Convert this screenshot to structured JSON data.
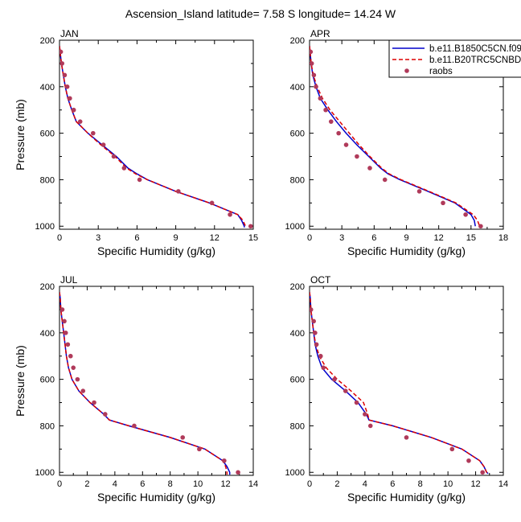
{
  "title": "Ascension_Island  latitude= 7.58 S longitude= 14.24 W",
  "legend": {
    "entries": [
      {
        "label": "b.e11.B1850C5CN.f09",
        "style": "solid",
        "color": "#0000cc"
      },
      {
        "label": "b.e11.B20TRC5CNBD",
        "style": "dashed",
        "color": "#dd0000"
      },
      {
        "label": "raobs",
        "style": "dot",
        "color": "#b03a5a"
      }
    ]
  },
  "chart_data": [
    {
      "type": "line",
      "panel": "JAN",
      "xlabel": "Specific Humidity (g/kg)",
      "ylabel": "Pressure (mb)",
      "xlim": [
        0,
        15
      ],
      "ylim": [
        200,
        1013
      ],
      "y_inverted": true,
      "xticks": [
        0,
        3,
        6,
        9,
        12,
        15
      ],
      "yticks": [
        200,
        400,
        600,
        800,
        1000
      ],
      "series": [
        {
          "name": "b.e11.B1850C5CN.f09",
          "pressure": [
            225,
            250,
            300,
            350,
            400,
            450,
            500,
            550,
            600,
            650,
            700,
            750,
            775,
            800,
            850,
            900,
            950,
            975,
            1000,
            1005
          ],
          "q": [
            0.0,
            0.05,
            0.15,
            0.3,
            0.45,
            0.65,
            0.95,
            1.3,
            2.2,
            3.3,
            4.4,
            5.3,
            6.0,
            6.8,
            9.0,
            11.6,
            13.8,
            14.1,
            14.3,
            14.3
          ]
        },
        {
          "name": "b.e11.B20TRC5CNBD",
          "pressure": [
            225,
            250,
            300,
            350,
            400,
            450,
            500,
            550,
            600,
            650,
            700,
            750,
            775,
            800,
            850,
            900,
            950,
            975,
            1000,
            1005
          ],
          "q": [
            0.0,
            0.05,
            0.15,
            0.3,
            0.45,
            0.65,
            0.95,
            1.3,
            2.2,
            3.2,
            4.3,
            5.2,
            5.9,
            6.8,
            9.0,
            11.6,
            13.8,
            14.2,
            14.4,
            14.4
          ]
        },
        {
          "name": "raobs",
          "pressure": [
            250,
            300,
            350,
            400,
            450,
            500,
            550,
            600,
            650,
            700,
            750,
            800,
            850,
            900,
            950,
            1000
          ],
          "q": [
            0.1,
            0.2,
            0.4,
            0.6,
            0.8,
            1.1,
            1.6,
            2.6,
            3.4,
            4.2,
            5.0,
            6.2,
            9.2,
            11.8,
            13.2,
            14.8
          ]
        }
      ]
    },
    {
      "type": "line",
      "panel": "APR",
      "xlabel": "Specific Humidity (g/kg)",
      "ylabel": "",
      "xlim": [
        0,
        18
      ],
      "ylim": [
        200,
        1013
      ],
      "y_inverted": true,
      "xticks": [
        0,
        3,
        6,
        9,
        12,
        15,
        18
      ],
      "yticks": [
        200,
        400,
        600,
        800,
        1000
      ],
      "series": [
        {
          "name": "b.e11.B1850C5CN.f09",
          "pressure": [
            225,
            250,
            300,
            350,
            400,
            450,
            500,
            550,
            600,
            650,
            700,
            750,
            775,
            800,
            850,
            900,
            950,
            975,
            1000
          ],
          "q": [
            0.0,
            0.05,
            0.15,
            0.3,
            0.6,
            1.0,
            1.7,
            2.5,
            3.4,
            4.4,
            5.5,
            6.6,
            7.3,
            8.4,
            11.0,
            13.5,
            15.0,
            15.3,
            15.4
          ]
        },
        {
          "name": "b.e11.B20TRC5CNBD",
          "pressure": [
            225,
            250,
            300,
            350,
            400,
            450,
            500,
            550,
            600,
            650,
            700,
            750,
            775,
            800,
            850,
            900,
            950,
            975,
            1000
          ],
          "q": [
            0.0,
            0.05,
            0.15,
            0.35,
            0.7,
            1.2,
            1.9,
            2.8,
            3.7,
            4.6,
            5.6,
            6.7,
            7.4,
            8.5,
            11.1,
            13.6,
            15.2,
            15.6,
            15.8
          ]
        },
        {
          "name": "raobs",
          "pressure": [
            250,
            300,
            350,
            400,
            450,
            500,
            550,
            600,
            650,
            700,
            750,
            800,
            850,
            900,
            950,
            1000
          ],
          "q": [
            0.1,
            0.2,
            0.4,
            0.6,
            1.0,
            1.5,
            2.0,
            2.7,
            3.4,
            4.4,
            5.6,
            7.0,
            10.2,
            12.4,
            14.5,
            15.9
          ]
        }
      ]
    },
    {
      "type": "line",
      "panel": "JUL",
      "xlabel": "Specific Humidity (g/kg)",
      "ylabel": "Pressure (mb)",
      "xlim": [
        0,
        14
      ],
      "ylim": [
        200,
        1013
      ],
      "y_inverted": true,
      "xticks": [
        0,
        2,
        4,
        6,
        8,
        10,
        12,
        14
      ],
      "yticks": [
        200,
        400,
        600,
        800,
        1000
      ],
      "series": [
        {
          "name": "b.e11.B1850C5CN.f09",
          "pressure": [
            225,
            250,
            300,
            350,
            400,
            450,
            500,
            550,
            600,
            650,
            700,
            750,
            775,
            800,
            850,
            900,
            950,
            975,
            1000,
            1010
          ],
          "q": [
            0.0,
            0.05,
            0.1,
            0.2,
            0.3,
            0.4,
            0.5,
            0.65,
            0.9,
            1.4,
            2.2,
            3.2,
            3.6,
            5.0,
            8.0,
            10.5,
            11.8,
            12.1,
            12.3,
            12.3
          ]
        },
        {
          "name": "b.e11.B20TRC5CNBD",
          "pressure": [
            225,
            250,
            300,
            350,
            400,
            450,
            500,
            550,
            600,
            650,
            700,
            750,
            775,
            800,
            850,
            900,
            950,
            975,
            1000,
            1010
          ],
          "q": [
            0.0,
            0.05,
            0.1,
            0.2,
            0.3,
            0.4,
            0.5,
            0.65,
            0.9,
            1.4,
            2.2,
            3.2,
            3.6,
            5.0,
            8.0,
            10.5,
            11.8,
            12.0,
            12.1,
            12.1
          ]
        },
        {
          "name": "raobs",
          "pressure": [
            300,
            350,
            400,
            450,
            500,
            550,
            600,
            650,
            700,
            750,
            800,
            850,
            900,
            950,
            1000
          ],
          "q": [
            0.2,
            0.35,
            0.45,
            0.6,
            0.8,
            1.0,
            1.3,
            1.7,
            2.5,
            3.3,
            5.4,
            8.9,
            10.1,
            11.9,
            12.9
          ]
        }
      ]
    },
    {
      "type": "line",
      "panel": "OCT",
      "xlabel": "Specific Humidity (g/kg)",
      "ylabel": "",
      "xlim": [
        0,
        14
      ],
      "ylim": [
        200,
        1013
      ],
      "y_inverted": true,
      "xticks": [
        0,
        2,
        4,
        6,
        8,
        10,
        12,
        14
      ],
      "yticks": [
        200,
        400,
        600,
        800,
        1000
      ],
      "series": [
        {
          "name": "b.e11.B1850C5CN.f09",
          "pressure": [
            225,
            250,
            300,
            350,
            400,
            450,
            500,
            550,
            600,
            650,
            700,
            750,
            775,
            800,
            850,
            900,
            950,
            975,
            1000,
            1005
          ],
          "q": [
            0.0,
            0.05,
            0.1,
            0.2,
            0.3,
            0.4,
            0.6,
            0.9,
            1.6,
            2.6,
            3.5,
            4.1,
            4.3,
            6.0,
            8.8,
            11.0,
            12.3,
            12.6,
            12.8,
            12.9
          ]
        },
        {
          "name": "b.e11.B20TRC5CNBD",
          "pressure": [
            225,
            250,
            300,
            350,
            400,
            450,
            500,
            550,
            600,
            650,
            700,
            750,
            775,
            800,
            850,
            900,
            950,
            975,
            1000,
            1005
          ],
          "q": [
            0.0,
            0.05,
            0.1,
            0.2,
            0.3,
            0.45,
            0.7,
            1.2,
            2.0,
            3.0,
            3.9,
            4.2,
            4.3,
            6.0,
            8.8,
            11.0,
            12.3,
            12.6,
            12.8,
            12.9
          ]
        },
        {
          "name": "raobs",
          "pressure": [
            300,
            350,
            400,
            450,
            500,
            550,
            600,
            650,
            700,
            750,
            800,
            850,
            900,
            950,
            1000
          ],
          "q": [
            0.1,
            0.3,
            0.4,
            0.5,
            0.8,
            1.0,
            1.8,
            2.6,
            3.4,
            4.0,
            4.4,
            7.0,
            10.3,
            11.5,
            12.5
          ]
        }
      ]
    }
  ]
}
